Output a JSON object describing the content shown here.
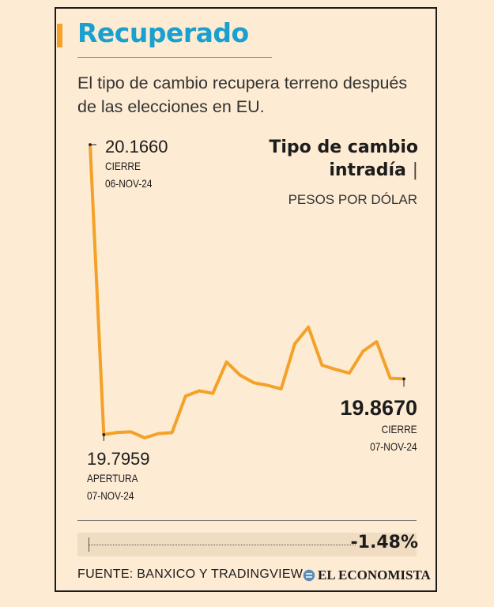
{
  "title": "Recuperado",
  "subtitle": "El tipo de cambio recupera terreno después de las elecciones en EU.",
  "chart_title_line1": "Tipo de cambio",
  "chart_title_line2": "intradía",
  "chart_title_sep": "|",
  "chart_unit": "PESOS POR DÓLAR",
  "annotations": {
    "prev_close": {
      "value": "20.1660",
      "label": "CIERRE",
      "date": "06-NOV-24"
    },
    "open": {
      "value": "19.7959",
      "label": "APERTURA",
      "date": "07-NOV-24"
    },
    "close": {
      "value": "19.8670",
      "label": "CIERRE",
      "date": "07-NOV-24"
    }
  },
  "change": "-1.48%",
  "source": "FUENTE: BANXICO Y TRADINGVIEW",
  "logo_text": "EL ECONOMISTA",
  "colors": {
    "line": "#f4a128",
    "title": "#1aa0cf",
    "background": "#fdebd3"
  },
  "chart_data": {
    "type": "line",
    "series": [
      {
        "values": [
          20.166,
          19.7959,
          19.7988,
          19.7995,
          19.7918,
          19.7972,
          19.7985,
          19.8452,
          19.8518,
          19.8486,
          19.8887,
          19.8717,
          19.8621,
          19.8589,
          19.8542,
          19.9117,
          19.9332,
          19.8845,
          19.8791,
          19.8744,
          19.9022,
          19.9146,
          19.8679,
          19.867
        ]
      }
    ],
    "grid": false,
    "legend": "none"
  }
}
